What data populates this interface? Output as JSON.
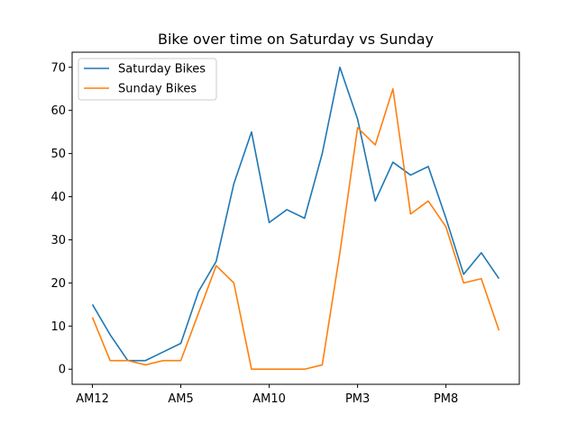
{
  "chart_data": {
    "type": "line",
    "title": "Bike over time on Saturday vs Sunday",
    "xlabel": "",
    "ylabel": "",
    "ylim": [
      -3.5,
      73.5
    ],
    "yticks": [
      0,
      10,
      20,
      30,
      40,
      50,
      60,
      70
    ],
    "x": [
      "AM12",
      "AM1",
      "AM2",
      "AM3",
      "AM4",
      "AM5",
      "AM6",
      "AM7",
      "AM8",
      "AM9",
      "AM10",
      "AM11",
      "PM12",
      "PM1",
      "PM2",
      "PM3",
      "PM4",
      "PM5",
      "PM6",
      "PM7",
      "PM8",
      "PM9",
      "PM10",
      "PM11"
    ],
    "xtick_labels": [
      "AM12",
      "AM5",
      "AM10",
      "PM3",
      "PM8"
    ],
    "grid": false,
    "legend_position": "upper left",
    "series": [
      {
        "name": "Saturday Bikes",
        "color": "#1f77b4",
        "values": [
          15,
          8,
          2,
          2,
          4,
          6,
          18,
          25,
          43,
          55,
          34,
          37,
          35,
          50,
          70,
          58,
          39,
          48,
          45,
          47,
          35,
          22,
          27,
          21
        ]
      },
      {
        "name": "Sunday Bikes",
        "color": "#ff7f0e",
        "values": [
          12,
          2,
          2,
          1,
          2,
          2,
          13,
          24,
          20,
          0,
          0,
          0,
          0,
          1,
          27,
          56,
          52,
          65,
          36,
          39,
          33,
          20,
          21,
          9
        ]
      }
    ]
  }
}
